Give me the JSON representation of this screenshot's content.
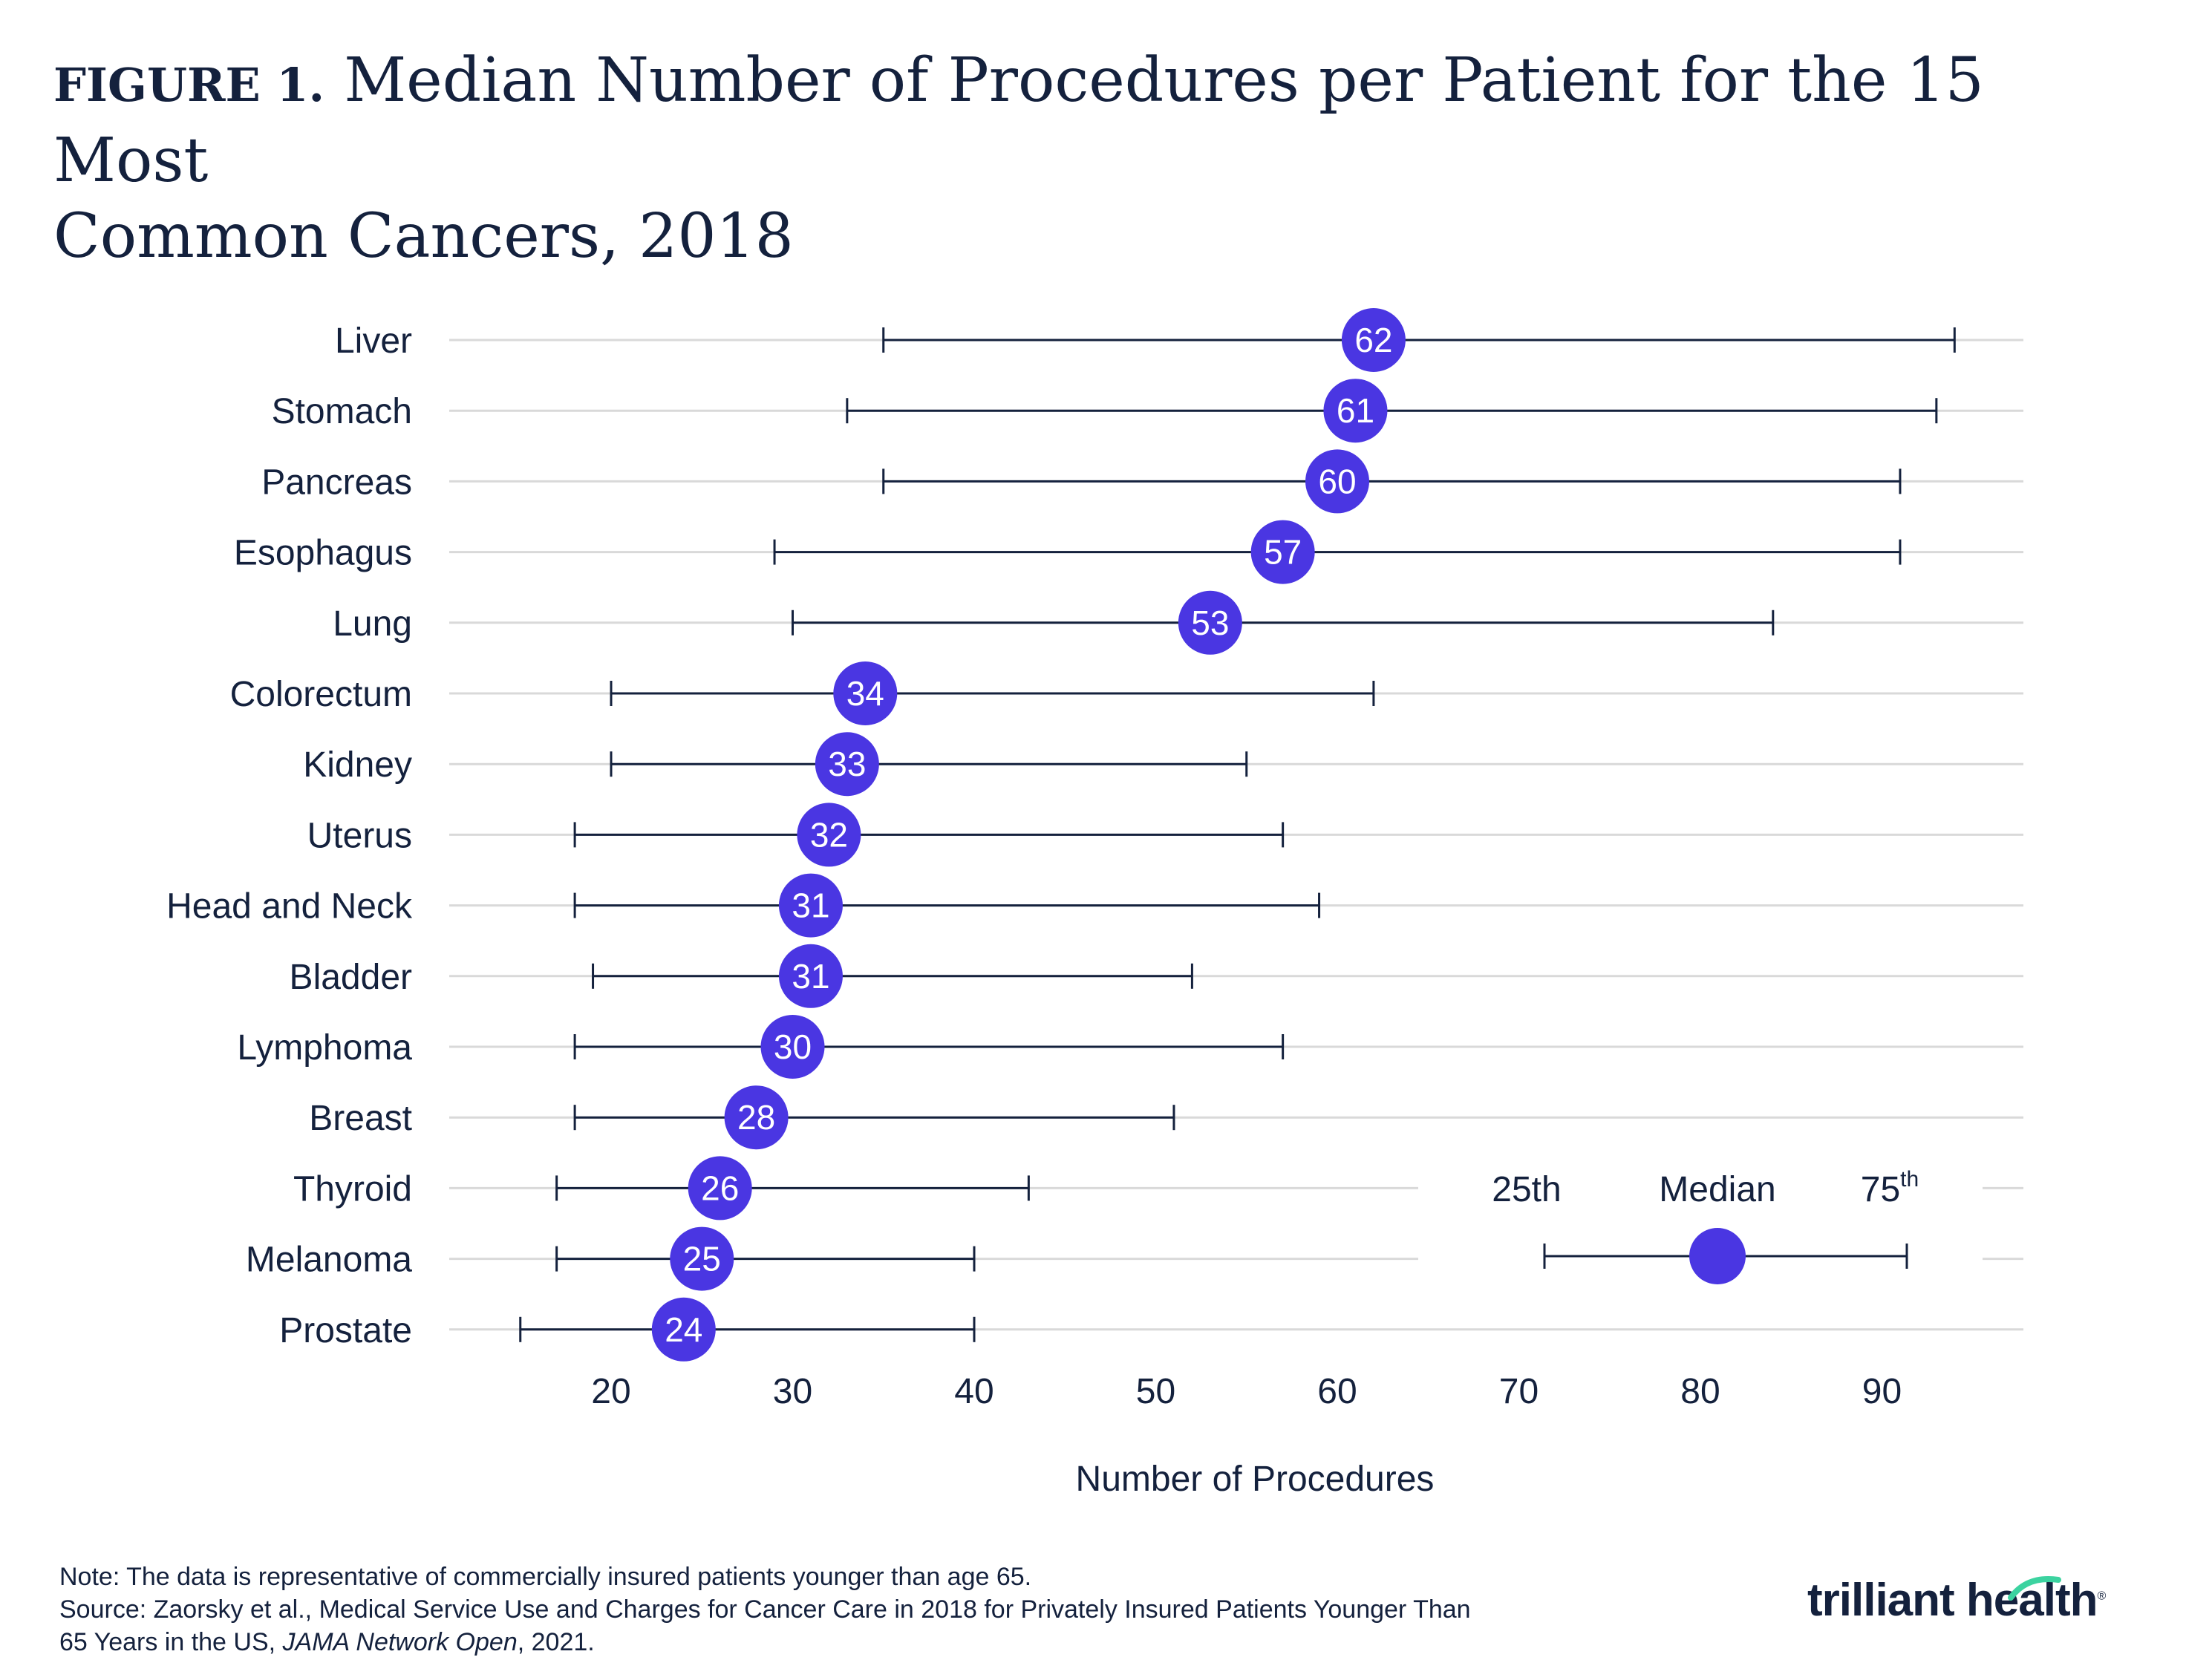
{
  "title": {
    "label": "FIGURE 1.",
    "line1": "Median Number of Procedures per Patient for the 15 Most",
    "line2": "Common Cancers, 2018"
  },
  "colors": {
    "dot": "#4a36e2",
    "line": "#14213d",
    "grid": "#d9d9d9",
    "text": "#14213d"
  },
  "chart_data": {
    "type": "dot-range",
    "categories": [
      "Liver",
      "Stomach",
      "Pancreas",
      "Esophagus",
      "Lung",
      "Colorectum",
      "Kidney",
      "Uterus",
      "Head and Neck",
      "Bladder",
      "Lymphoma",
      "Breast",
      "Thyroid",
      "Melanoma",
      "Prostate"
    ],
    "series": [
      {
        "name": "25th",
        "values": [
          35,
          33,
          35,
          29,
          30,
          20,
          20,
          18,
          18,
          19,
          18,
          18,
          17,
          17,
          15
        ]
      },
      {
        "name": "Median",
        "values": [
          62,
          61,
          60,
          57,
          53,
          34,
          33,
          32,
          31,
          31,
          30,
          28,
          26,
          25,
          24
        ]
      },
      {
        "name": "75th",
        "values": [
          94,
          93,
          91,
          91,
          84,
          62,
          55,
          57,
          59,
          52,
          57,
          51,
          43,
          40,
          40
        ]
      }
    ],
    "xlabel": "Number of Procedures",
    "xticks": [
      20,
      30,
      40,
      50,
      60,
      70,
      80,
      90
    ],
    "xlim": [
      11,
      98
    ],
    "grid": true,
    "legend": {
      "placement": "bottom-right",
      "low_label": "25th",
      "mid_label": "Median",
      "high_label_num": "75",
      "high_label_sup": "th"
    }
  },
  "footer": {
    "note": "Note: The data is representative of commercially insured patients younger than age 65.",
    "source_line1": "Source: Zaorsky et al., Medical Service Use and Charges for Cancer Care in 2018 for Privately Insured Patients Younger Than",
    "source_line2_start": "65 Years in the US, ",
    "source_journal": "JAMA Network Open",
    "source_line2_end": ", 2021."
  },
  "logo": {
    "text": "trilliant health",
    "mark": "®"
  }
}
